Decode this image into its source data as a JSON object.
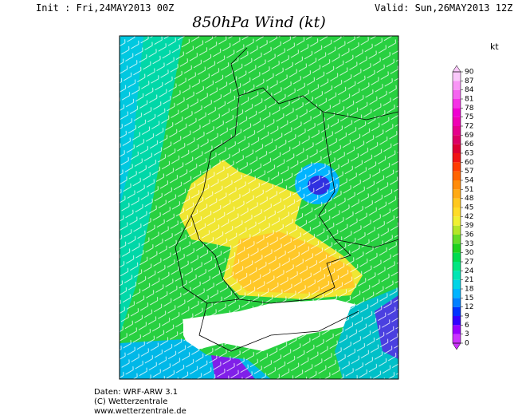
{
  "header": {
    "init": "Init : Fri,24MAY2013 00Z",
    "valid": "Valid: Sun,26MAY2013 12Z",
    "title": "850hPa Wind (kt)"
  },
  "colorbar": {
    "unit": "kt",
    "ticks": [
      0,
      3,
      6,
      9,
      12,
      15,
      18,
      21,
      24,
      27,
      30,
      33,
      36,
      39,
      42,
      45,
      48,
      51,
      54,
      57,
      60,
      63,
      66,
      69,
      72,
      75,
      78,
      81,
      84,
      87,
      90
    ],
    "colors": [
      "#cc33ff",
      "#9900ff",
      "#3300ff",
      "#0033ff",
      "#0080ff",
      "#00b4ff",
      "#00d4e6",
      "#00e6b4",
      "#00e680",
      "#00dc50",
      "#1ed21e",
      "#64dc28",
      "#b4e628",
      "#f0f032",
      "#ffdc28",
      "#ffc81e",
      "#ffaa14",
      "#ff8c0a",
      "#ff6400",
      "#ff3c00",
      "#f01414",
      "#dc0032",
      "#dc0064",
      "#e6008c",
      "#f000b4",
      "#f000d2",
      "#f532e6",
      "#f564f0",
      "#f896f5",
      "#fac8fa"
    ]
  },
  "footer": {
    "lines": [
      "Daten: WRF-ARW 3.1",
      "(C) Wetterzentrale",
      "www.wetterzentrale.de"
    ]
  }
}
